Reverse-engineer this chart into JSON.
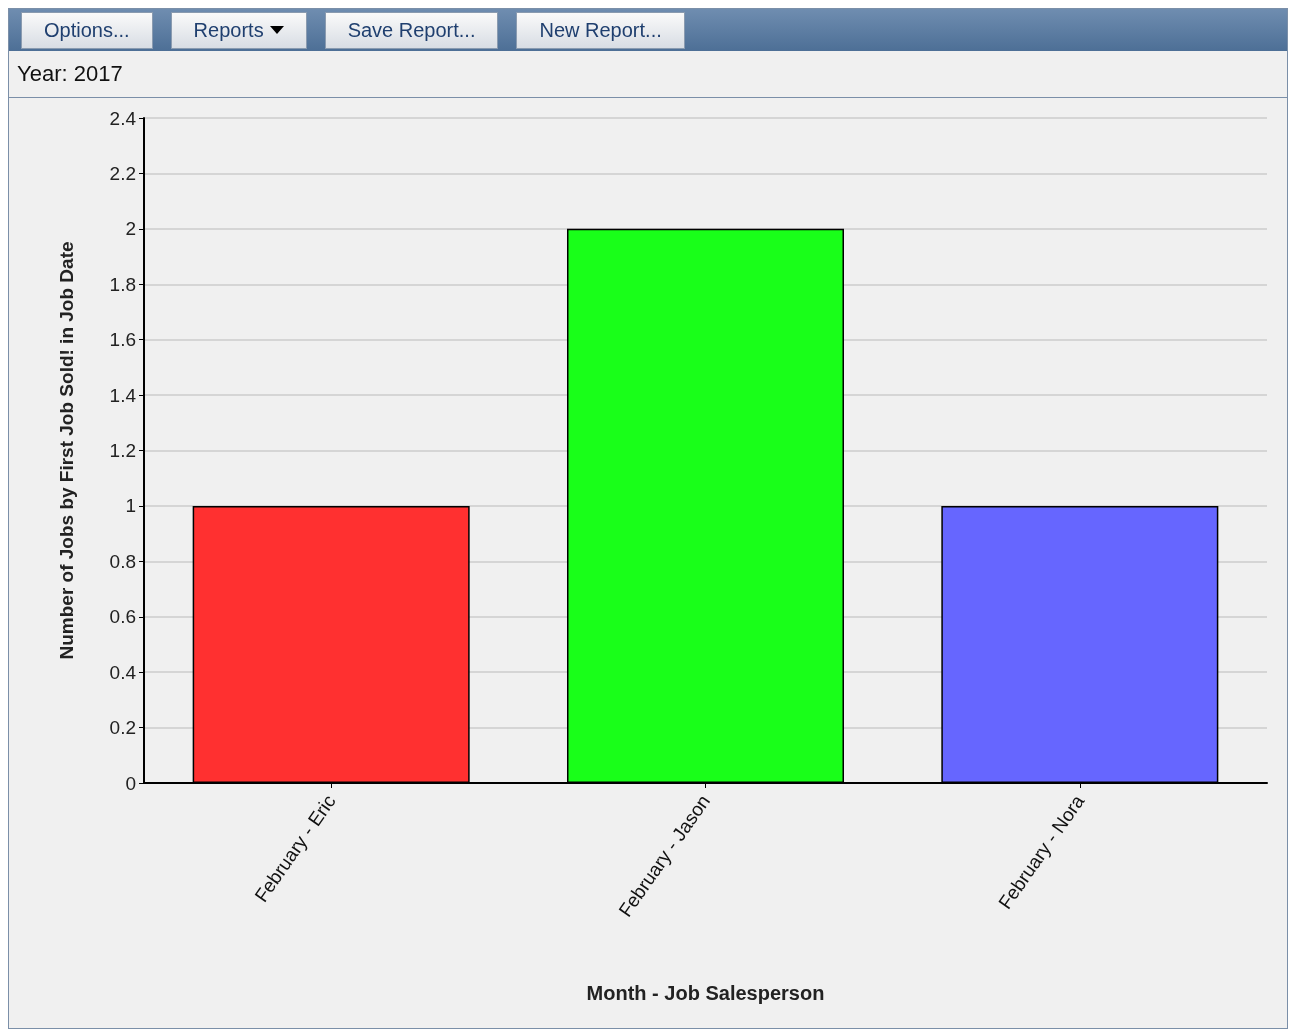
{
  "chart_data": {
    "type": "bar",
    "subtitle": "Year: 2017",
    "annotations": [
      "Options...",
      "Reports",
      "Save Report...",
      "New Report..."
    ],
    "categories": [
      "February - Eric",
      "February - Jason",
      "February - Nora"
    ],
    "values": [
      1,
      2,
      1
    ],
    "colors": [
      "#ff3030",
      "#19ff19",
      "#6666ff"
    ],
    "xlabel": "Month - Job Salesperson",
    "ylabel": "Number of Jobs by First Job Sold! in Job Date",
    "ylim": [
      0,
      2.4
    ],
    "yticks": [
      0,
      0.2,
      0.4,
      0.6,
      0.8,
      1,
      1.2,
      1.4,
      1.6,
      1.8,
      2,
      2.2,
      2.4
    ],
    "grid": "y"
  }
}
